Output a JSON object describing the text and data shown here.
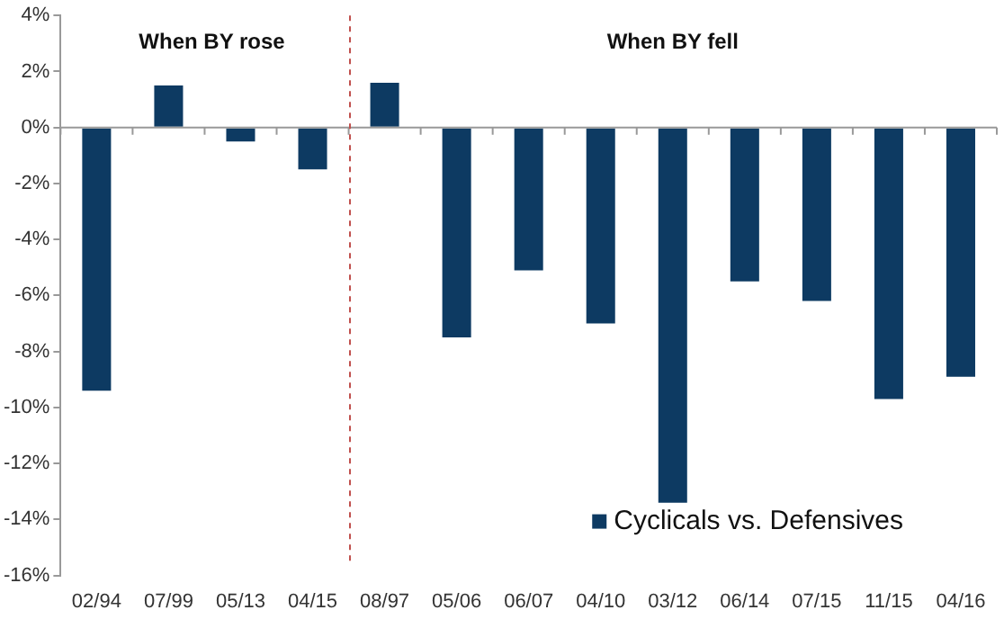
{
  "chart_data": {
    "type": "bar",
    "categories": [
      "02/94",
      "07/99",
      "05/13",
      "04/15",
      "08/97",
      "05/06",
      "06/07",
      "04/10",
      "03/12",
      "06/14",
      "07/15",
      "11/15",
      "04/16"
    ],
    "series": [
      {
        "name": "Cyclicals vs. Defensives",
        "color": "#0d3a62",
        "values": [
          -9.4,
          1.5,
          -0.5,
          -1.5,
          1.6,
          -7.5,
          -5.1,
          -7.0,
          -13.4,
          -5.5,
          -6.2,
          -9.7,
          -8.9
        ]
      }
    ],
    "ylim": [
      -16,
      4
    ],
    "yticks": [
      {
        "value": -16,
        "label": "-16%"
      },
      {
        "value": -14,
        "label": "-14%"
      },
      {
        "value": -12,
        "label": "-12%"
      },
      {
        "value": -10,
        "label": "-10%"
      },
      {
        "value": -8,
        "label": "-8%"
      },
      {
        "value": -6,
        "label": "-6%"
      },
      {
        "value": -4,
        "label": "-4%"
      },
      {
        "value": -2,
        "label": "-2%"
      },
      {
        "value": 0,
        "label": "0%"
      },
      {
        "value": 2,
        "label": "2%"
      },
      {
        "value": 4,
        "label": "4%"
      }
    ],
    "ref_lines": [
      {
        "axis": "x",
        "value": "08/97",
        "color": "#c0504d",
        "line_style": "dashed"
      }
    ],
    "annotations": [
      "When BY rose",
      "When BY fell"
    ],
    "grid": false,
    "legend": "bottom right"
  }
}
